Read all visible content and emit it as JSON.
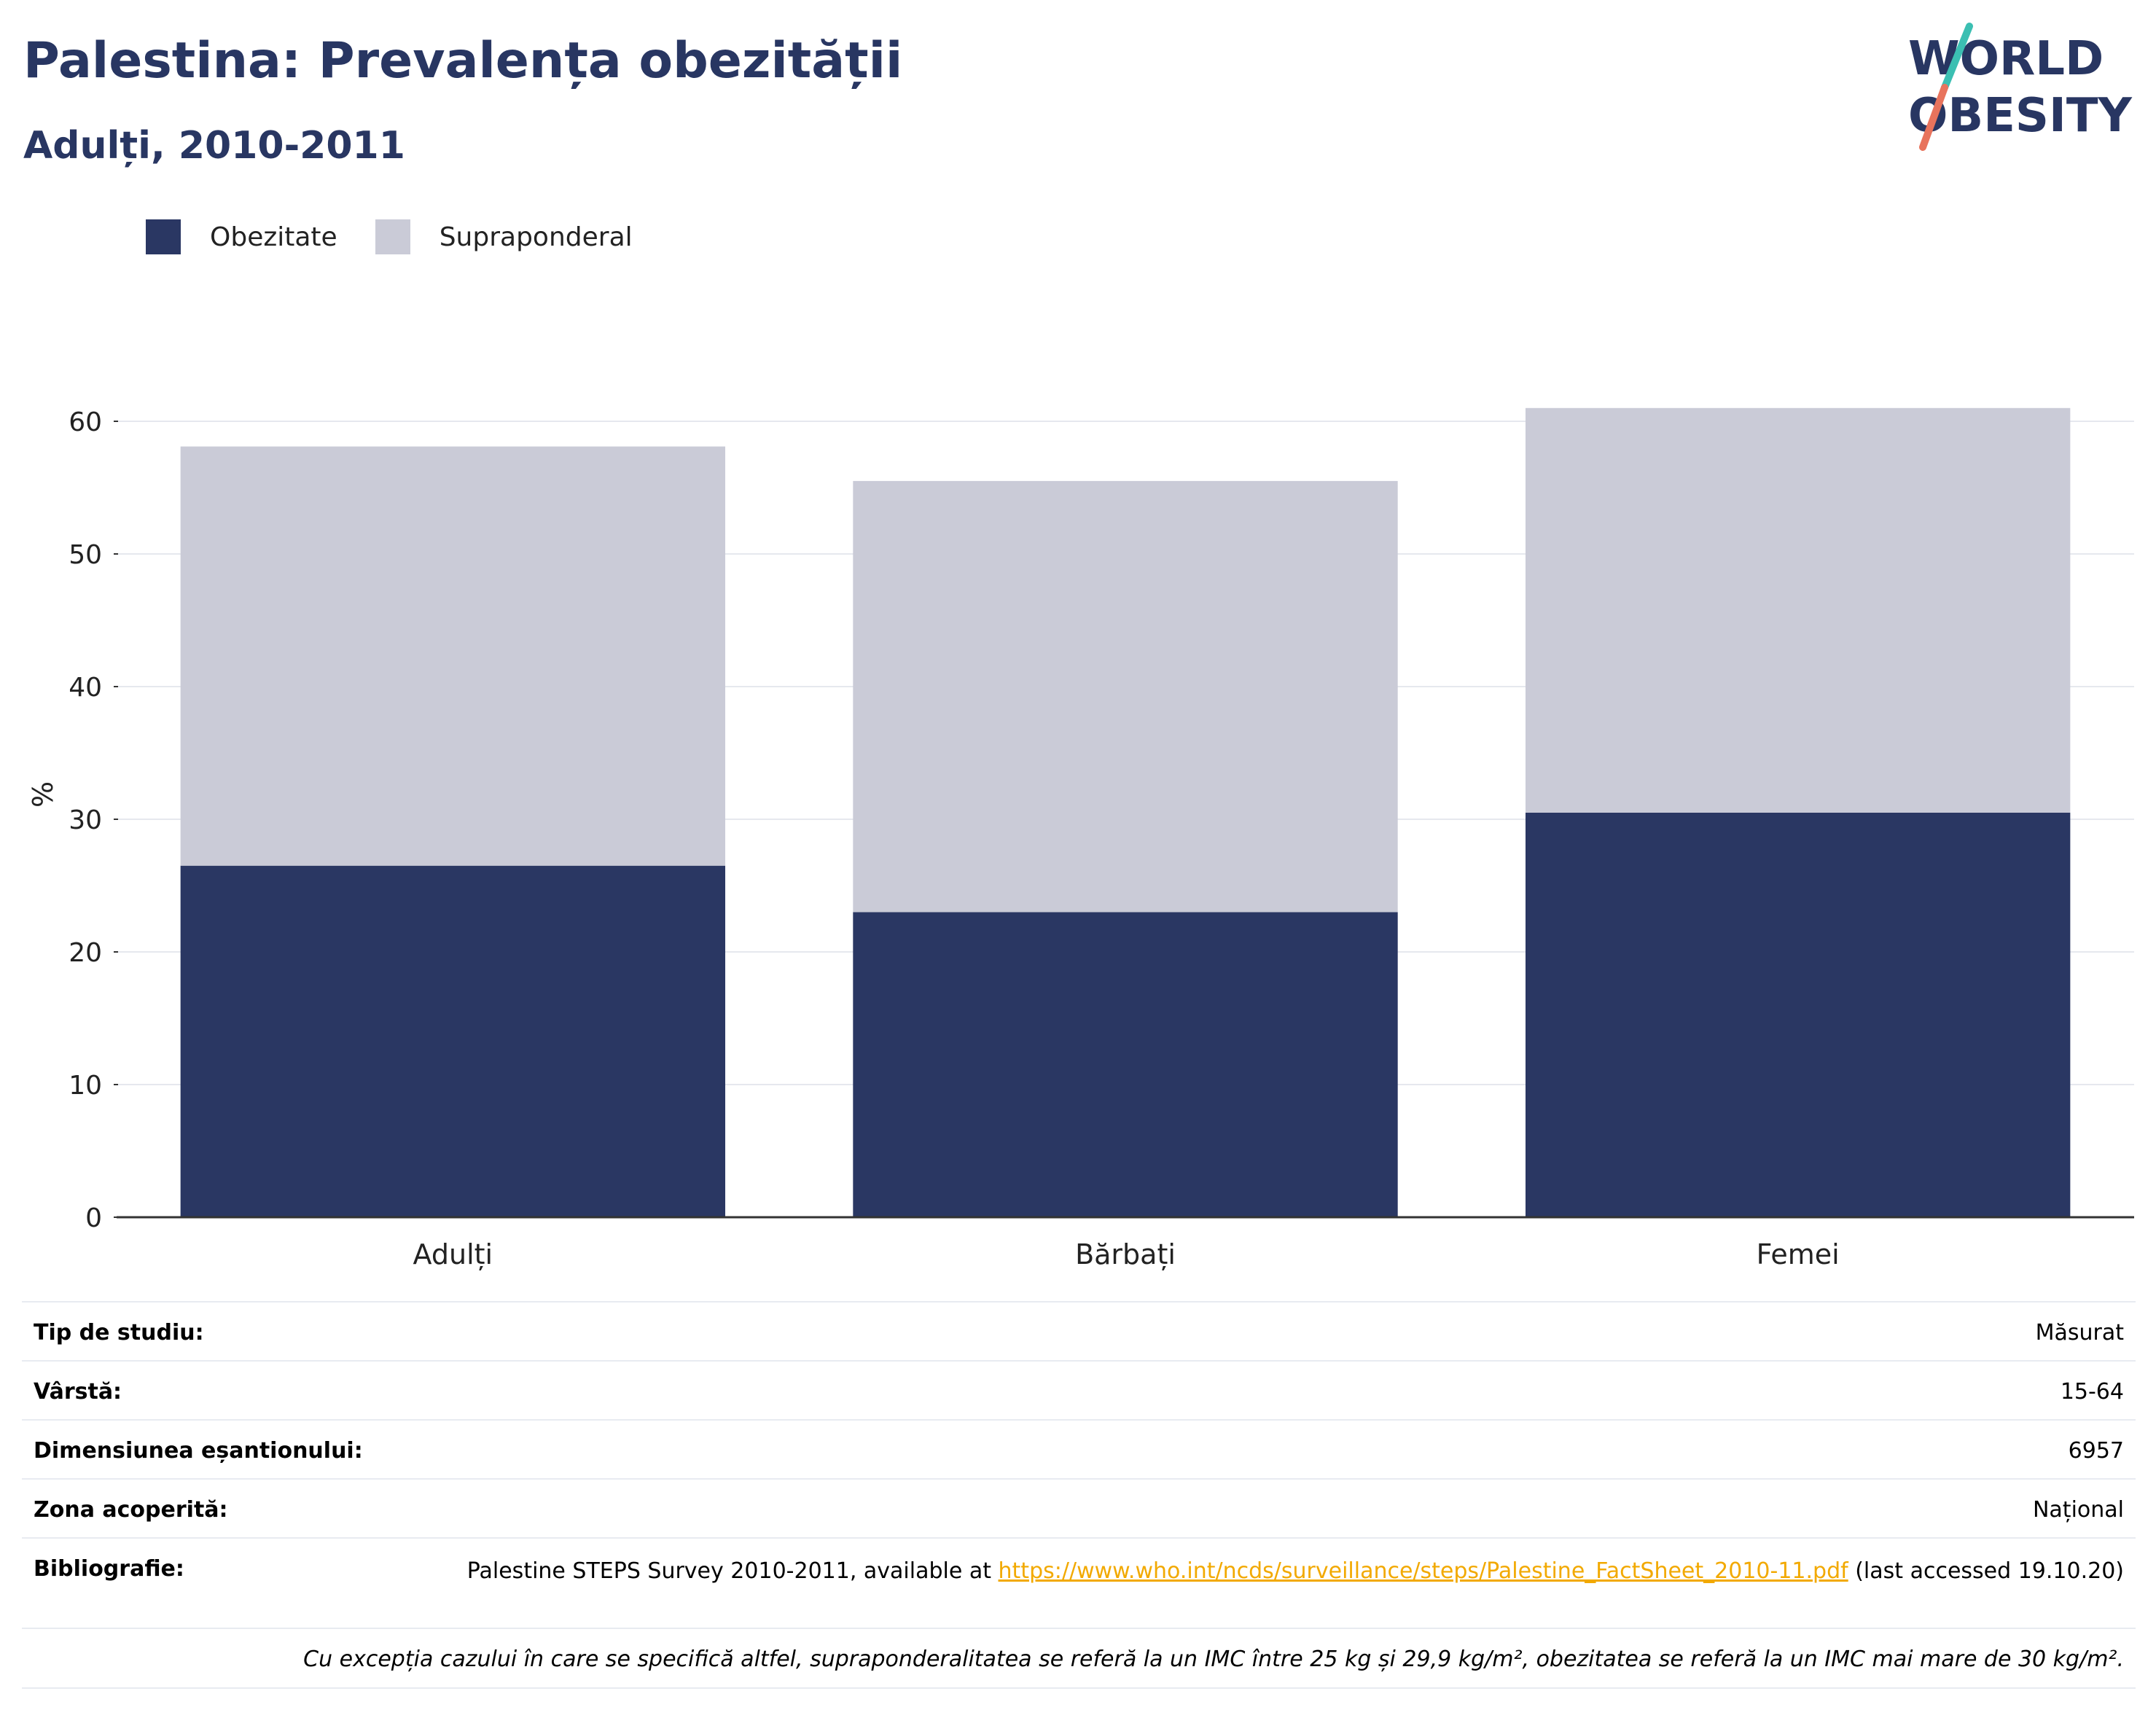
{
  "header": {
    "title": "Palestina: Prevalența obezității",
    "subtitle": "Adulți, 2010-2011"
  },
  "logo": {
    "line1": "WORLD",
    "line2": "OBESITY",
    "accent_teal": "#3bbfb2",
    "accent_coral": "#e8735c",
    "text_color": "#283662"
  },
  "colors": {
    "obesity": "#2a3763",
    "overweight": "#cacbd7",
    "grid": "#e6e8ee",
    "axis": "#333333"
  },
  "legend": {
    "items": [
      {
        "label": "Obezitate"
      },
      {
        "label": "Supraponderal"
      }
    ]
  },
  "chart_data": {
    "type": "bar",
    "stacked": true,
    "categories": [
      "Adulți",
      "Bărbați",
      "Femei"
    ],
    "series": [
      {
        "name": "Obezitate",
        "values": [
          26.5,
          23.0,
          30.5
        ]
      },
      {
        "name": "Supraponderal",
        "values": [
          31.6,
          32.5,
          30.5
        ]
      }
    ],
    "ylabel": "%",
    "ylim": [
      0,
      65
    ],
    "yticks": [
      0,
      10,
      20,
      30,
      40,
      50,
      60
    ],
    "grid": true,
    "legend_position": "top-left"
  },
  "info": {
    "rows": [
      {
        "label": "Tip de studiu:",
        "value": "Măsurat"
      },
      {
        "label": "Vârstă:",
        "value": "15-64"
      },
      {
        "label": "Dimensiunea eșantionului:",
        "value": "6957"
      },
      {
        "label": "Zona acoperită:",
        "value": "Național"
      }
    ],
    "bibliography": {
      "label": "Bibliografie:",
      "text_before": "Palestine STEPS Survey 2010-2011, available at ",
      "link": "https://www.who.int/ncds/surveillance/steps/Palestine_FactSheet_2010-11.pdf",
      "text_after": " (last accessed 19.10.20)"
    },
    "note": "Cu excepția cazului în care se specifică altfel, supraponderalitatea se referă la un IMC între 25 kg și 29,9 kg/m², obezitatea se referă la un IMC mai mare de 30 kg/m²."
  }
}
